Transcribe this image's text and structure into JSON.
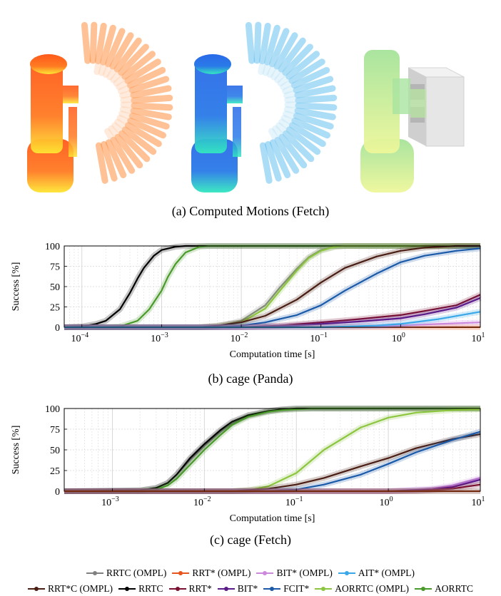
{
  "figure": {
    "caption_a": "(a) Computed Motions (Fetch)",
    "caption_b": "(b) cage (Panda)",
    "caption_c": "(c) cage (Fetch)"
  },
  "colors": {
    "fetch_warm": "#ff7a1a",
    "fetch_cool": "#2a7ae8",
    "fetch_green": "#9be08a",
    "shelf": "#e2e2e2"
  },
  "legend": [
    {
      "label": "RRTC (OMPL)",
      "color": "#808080"
    },
    {
      "label": "RRT* (OMPL)",
      "color": "#e8541c"
    },
    {
      "label": "BIT* (OMPL)",
      "color": "#cc88dd"
    },
    {
      "label": "AIT* (OMPL)",
      "color": "#3aa8e8"
    },
    {
      "label": "RRT*C (OMPL)",
      "color": "#4a1e14"
    },
    {
      "label": "RRTC",
      "color": "#000000"
    },
    {
      "label": "RRT*",
      "color": "#7a1030"
    },
    {
      "label": "BIT*",
      "color": "#5a1a8a"
    },
    {
      "label": "FCIT*",
      "color": "#1a5aa8"
    },
    {
      "label": "AORRTC (OMPL)",
      "color": "#8cc63f"
    },
    {
      "label": "AORRTC",
      "color": "#4a9a2a"
    }
  ],
  "chart_data": [
    {
      "type": "line",
      "id": "b",
      "xscale": "log",
      "xlabel": "Computation time [s]",
      "ylabel": "Success [%]",
      "xlim": [
        6e-05,
        10
      ],
      "ylim": [
        0,
        100
      ],
      "xticks": [
        0.0001,
        0.001,
        0.01,
        0.1,
        1,
        10
      ],
      "xtick_labels": [
        [
          "10",
          "−4"
        ],
        [
          "10",
          "−3"
        ],
        [
          "10",
          "−2"
        ],
        [
          "10",
          "−1"
        ],
        [
          "10",
          "0"
        ],
        [
          "10",
          "1"
        ]
      ],
      "yticks": [
        0,
        25,
        50,
        75,
        100
      ],
      "grid": true,
      "series": [
        {
          "name": "RRTC",
          "color": "#000000",
          "x": [
            6e-05,
            0.0001,
            0.00015,
            0.0002,
            0.0003,
            0.0004,
            0.0005,
            0.0006,
            0.0008,
            0.001,
            0.0015,
            0.002,
            0.003,
            10
          ],
          "y": [
            0,
            1,
            4,
            8,
            22,
            42,
            60,
            73,
            88,
            95,
            99,
            100,
            100,
            100
          ]
        },
        {
          "name": "AORRTC",
          "color": "#4a9a2a",
          "x": [
            6e-05,
            0.0002,
            0.0003,
            0.0005,
            0.0007,
            0.001,
            0.0012,
            0.0015,
            0.002,
            0.003,
            0.004,
            10
          ],
          "y": [
            0,
            0,
            1,
            8,
            22,
            45,
            62,
            78,
            92,
            99,
            100,
            100
          ]
        },
        {
          "name": "RRTC (OMPL)",
          "color": "#808080",
          "x": [
            6e-05,
            0.003,
            0.005,
            0.01,
            0.02,
            0.03,
            0.05,
            0.07,
            0.1,
            0.15,
            0.2,
            0.3,
            10
          ],
          "y": [
            0,
            0,
            1,
            8,
            27,
            48,
            72,
            86,
            95,
            99,
            100,
            100,
            100
          ]
        },
        {
          "name": "AORRTC (OMPL)",
          "color": "#8cc63f",
          "x": [
            6e-05,
            0.003,
            0.005,
            0.01,
            0.02,
            0.03,
            0.05,
            0.07,
            0.1,
            0.15,
            0.2,
            0.3,
            10
          ],
          "y": [
            0,
            0,
            1,
            6,
            23,
            44,
            70,
            85,
            94,
            99,
            100,
            100,
            100
          ]
        },
        {
          "name": "RRT*C (OMPL)",
          "color": "#4a1e14",
          "x": [
            6e-05,
            0.003,
            0.005,
            0.01,
            0.02,
            0.05,
            0.1,
            0.2,
            0.5,
            1,
            2,
            5,
            10
          ],
          "y": [
            0,
            0,
            2,
            6,
            14,
            34,
            55,
            73,
            87,
            94,
            98,
            100,
            100
          ]
        },
        {
          "name": "FCIT*",
          "color": "#1a5aa8",
          "x": [
            6e-05,
            0.005,
            0.01,
            0.02,
            0.05,
            0.1,
            0.2,
            0.5,
            1,
            2,
            5,
            10
          ],
          "y": [
            0,
            0,
            2,
            6,
            15,
            27,
            45,
            66,
            80,
            88,
            94,
            97
          ]
        },
        {
          "name": "RRT*",
          "color": "#7a1030",
          "x": [
            6e-05,
            0.01,
            0.03,
            0.1,
            0.3,
            1,
            2,
            5,
            10
          ],
          "y": [
            0,
            0,
            2,
            6,
            10,
            15,
            20,
            27,
            40
          ]
        },
        {
          "name": "BIT*",
          "color": "#5a1a8a",
          "x": [
            6e-05,
            0.01,
            0.03,
            0.1,
            0.3,
            1,
            2,
            5,
            10
          ],
          "y": [
            0,
            0,
            1,
            4,
            7,
            11,
            16,
            24,
            36
          ]
        },
        {
          "name": "RRT* (OMPL)",
          "color": "#e8541c",
          "x": [
            6e-05,
            10
          ],
          "y": [
            0,
            0
          ]
        },
        {
          "name": "BIT* (OMPL)",
          "color": "#cc88dd",
          "x": [
            6e-05,
            0.1,
            0.5,
            1,
            3,
            10
          ],
          "y": [
            0,
            0,
            1,
            2,
            4,
            6
          ]
        },
        {
          "name": "AIT* (OMPL)",
          "color": "#3aa8e8",
          "x": [
            6e-05,
            0.1,
            0.5,
            1,
            3,
            10
          ],
          "y": [
            0,
            0,
            2,
            4,
            10,
            19
          ]
        }
      ]
    },
    {
      "type": "line",
      "id": "c",
      "xscale": "log",
      "xlabel": "Computation time [s]",
      "ylabel": "Success [%]",
      "xlim": [
        0.0003,
        10
      ],
      "ylim": [
        0,
        100
      ],
      "xticks": [
        0.001,
        0.01,
        0.1,
        1,
        10
      ],
      "xtick_labels": [
        [
          "10",
          "−3"
        ],
        [
          "10",
          "−2"
        ],
        [
          "10",
          "−1"
        ],
        [
          "10",
          "0"
        ],
        [
          "10",
          "1"
        ]
      ],
      "yticks": [
        0,
        25,
        50,
        75,
        100
      ],
      "grid": true,
      "series": [
        {
          "name": "RRTC (OMPL)",
          "color": "#808080",
          "x": [
            0.0003,
            0.002,
            0.003,
            0.004,
            0.005,
            0.007,
            0.01,
            0.015,
            0.02,
            0.03,
            0.05,
            0.07,
            0.1,
            0.15,
            10
          ],
          "y": [
            0,
            1,
            4,
            10,
            20,
            38,
            55,
            72,
            82,
            91,
            97,
            99,
            100,
            100,
            100
          ]
        },
        {
          "name": "RRTC",
          "color": "#000000",
          "x": [
            0.0003,
            0.002,
            0.003,
            0.004,
            0.005,
            0.007,
            0.01,
            0.015,
            0.02,
            0.03,
            0.05,
            0.07,
            0.1,
            0.15,
            10
          ],
          "y": [
            0,
            1,
            4,
            10,
            20,
            40,
            57,
            74,
            84,
            92,
            97,
            99,
            100,
            100,
            100
          ]
        },
        {
          "name": "AORRTC",
          "color": "#4a9a2a",
          "x": [
            0.0003,
            0.002,
            0.003,
            0.004,
            0.005,
            0.007,
            0.01,
            0.015,
            0.02,
            0.03,
            0.05,
            0.07,
            0.1,
            0.15,
            0.2,
            10
          ],
          "y": [
            0,
            0,
            2,
            7,
            15,
            32,
            50,
            68,
            80,
            90,
            96,
            98,
            99,
            100,
            100,
            100
          ]
        },
        {
          "name": "AORRTC (OMPL)",
          "color": "#8cc63f",
          "x": [
            0.0003,
            0.02,
            0.03,
            0.05,
            0.1,
            0.2,
            0.5,
            1,
            2,
            5,
            10
          ],
          "y": [
            0,
            0,
            1,
            6,
            22,
            50,
            77,
            89,
            95,
            98,
            99
          ]
        },
        {
          "name": "RRT*C (OMPL)",
          "color": "#4a1e14",
          "x": [
            0.0003,
            0.02,
            0.05,
            0.1,
            0.2,
            0.5,
            1,
            2,
            5,
            10
          ],
          "y": [
            0,
            0,
            3,
            8,
            16,
            30,
            40,
            52,
            63,
            69
          ]
        },
        {
          "name": "FCIT*",
          "color": "#1a5aa8",
          "x": [
            0.0003,
            0.05,
            0.1,
            0.2,
            0.5,
            1,
            2,
            5,
            10
          ],
          "y": [
            0,
            0,
            2,
            8,
            20,
            33,
            47,
            62,
            72
          ]
        },
        {
          "name": "BIT* (OMPL)",
          "color": "#cc88dd",
          "x": [
            0.0003,
            1,
            3,
            5,
            10
          ],
          "y": [
            0,
            0,
            3,
            7,
            16
          ]
        },
        {
          "name": "BIT*",
          "color": "#5a1a8a",
          "x": [
            0.0003,
            1,
            3,
            5,
            10
          ],
          "y": [
            0,
            0,
            2,
            5,
            14
          ]
        },
        {
          "name": "RRT*",
          "color": "#7a1030",
          "x": [
            0.0003,
            2,
            5,
            10
          ],
          "y": [
            0,
            0,
            3,
            8
          ]
        },
        {
          "name": "AIT* (OMPL)",
          "color": "#3aa8e8",
          "x": [
            0.0003,
            10
          ],
          "y": [
            0,
            0
          ]
        },
        {
          "name": "RRT* (OMPL)",
          "color": "#e8541c",
          "x": [
            0.0003,
            10
          ],
          "y": [
            0,
            0
          ]
        }
      ]
    }
  ]
}
